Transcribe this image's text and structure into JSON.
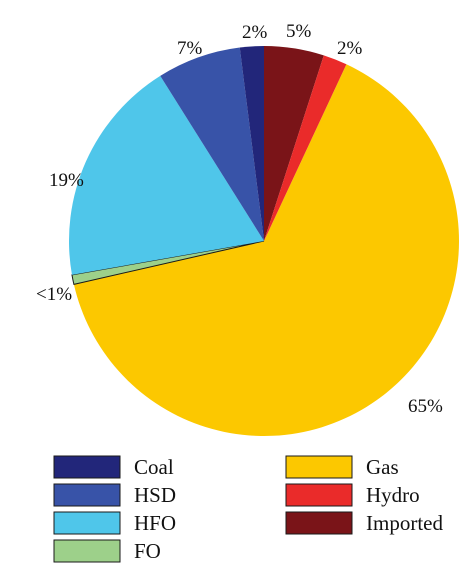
{
  "chart_data": {
    "type": "pie",
    "title": "",
    "slices": [
      {
        "name": "Coal",
        "value": 2,
        "label": "2%",
        "color": "#22267a"
      },
      {
        "name": "HSD",
        "value": 7,
        "label": "7%",
        "color": "#3853a8"
      },
      {
        "name": "HFO",
        "value": 19,
        "label": "19%",
        "color": "#4fc6ea"
      },
      {
        "name": "FO",
        "value": 0.8,
        "label": "<1%",
        "color": "#9dd08a"
      },
      {
        "name": "Gas",
        "value": 65,
        "label": "65%",
        "color": "#fcc800"
      },
      {
        "name": "Hydro",
        "value": 2,
        "label": "2%",
        "color": "#ea2b2a"
      },
      {
        "name": "Imported",
        "value": 5,
        "label": "5%",
        "color": "#7a1418"
      }
    ],
    "legend": {
      "placement": "bottom",
      "columns": [
        [
          "Coal",
          "HSD",
          "HFO",
          "FO"
        ],
        [
          "Gas",
          "Hydro",
          "Imported"
        ]
      ]
    },
    "start_angle_deg": 0,
    "direction": "counterclockwise"
  }
}
